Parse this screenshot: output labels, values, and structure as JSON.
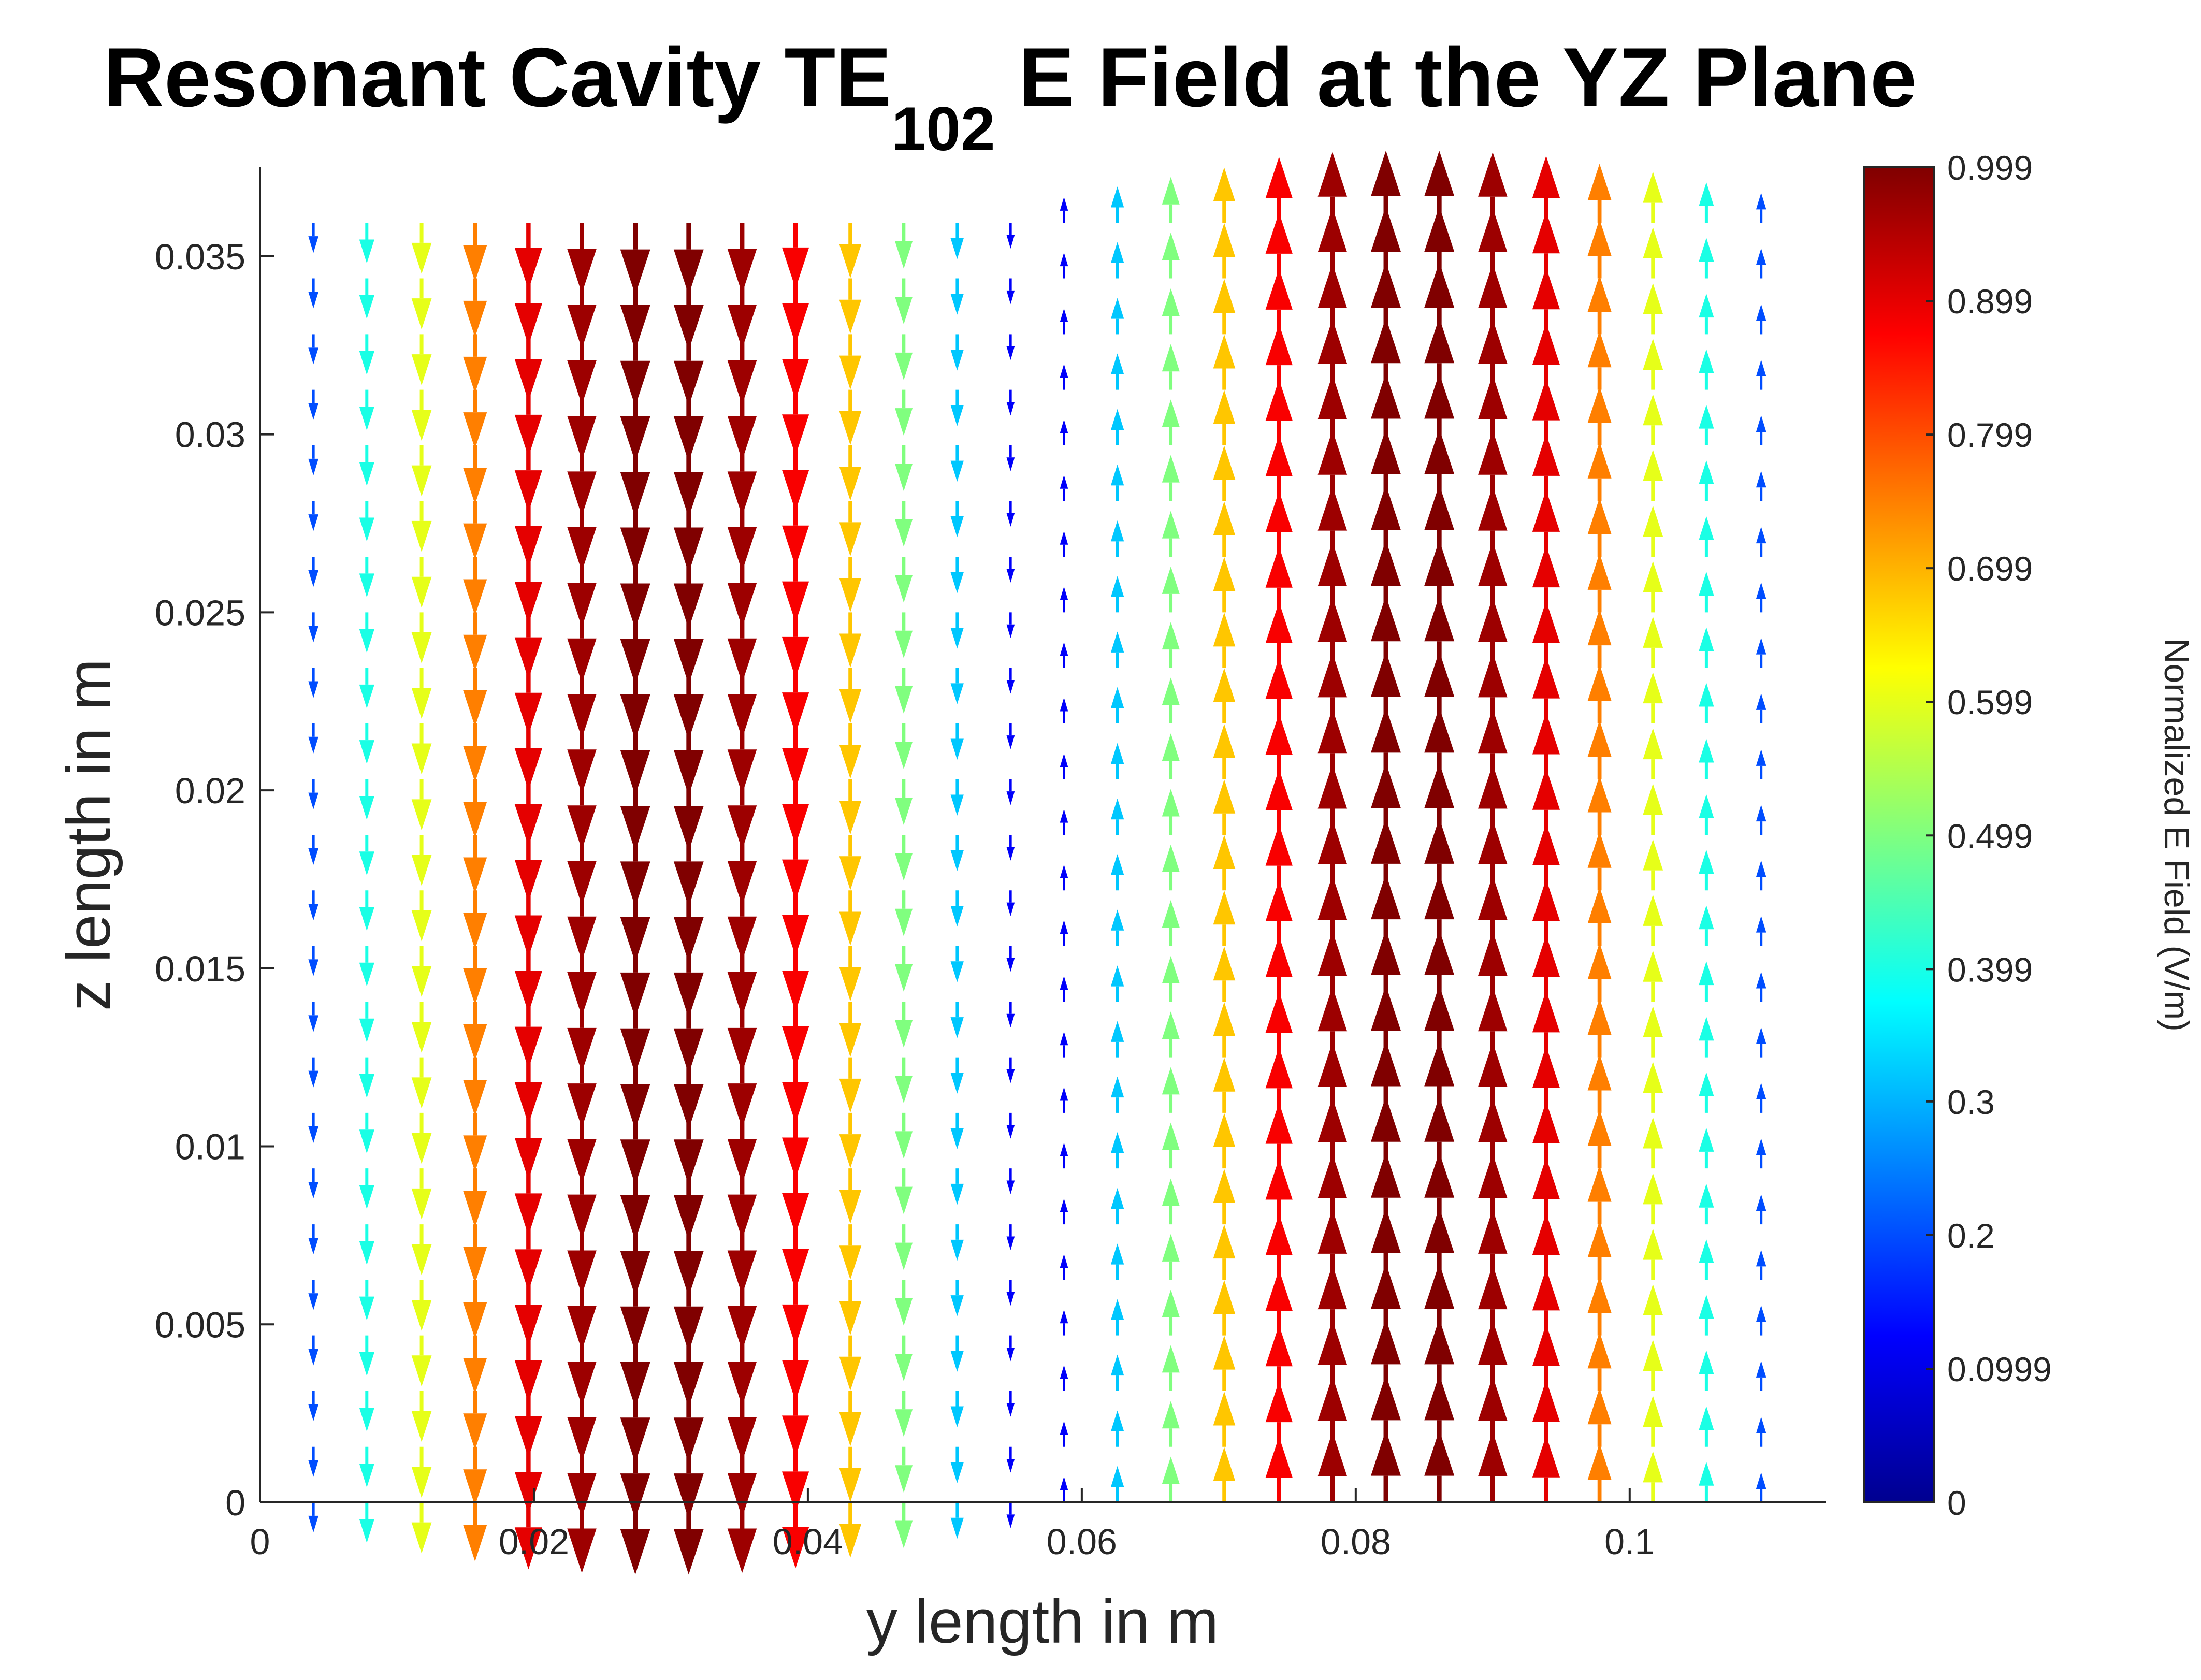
{
  "chart_data": {
    "type": "quiver",
    "title_main": "Resonant Cavity TE",
    "title_subscript": "102",
    "title_rest": " E Field at the YZ Plane",
    "xlabel": "y length in m",
    "ylabel": "z length in m",
    "xlim": [
      0,
      0.1143
    ],
    "ylim": [
      0,
      0.0375
    ],
    "xticks": [
      0,
      0.02,
      0.04,
      0.06,
      0.08,
      0.1
    ],
    "xtick_labels": [
      "0",
      "0.02",
      "0.04",
      "0.06",
      "0.08",
      "0.1"
    ],
    "yticks": [
      0,
      0.005,
      0.01,
      0.015,
      0.02,
      0.025,
      0.03,
      0.035
    ],
    "ytick_labels": [
      "0",
      "0.005",
      "0.01",
      "0.015",
      "0.02",
      "0.025",
      "0.03",
      "0.035"
    ],
    "colorbar": {
      "label": "Normalized E Field (V/m)",
      "colormap": "jet",
      "clim": [
        0,
        0.999
      ],
      "ticks": [
        0,
        0.0999,
        0.2,
        0.3,
        0.399,
        0.499,
        0.599,
        0.699,
        0.799,
        0.899,
        0.999
      ],
      "tick_labels": [
        "0",
        "0.0999",
        "0.2",
        "0.3",
        "0.399",
        "0.499",
        "0.599",
        "0.699",
        "0.799",
        "0.899",
        "0.999"
      ]
    },
    "grid": false,
    "arrow_columns": {
      "y": [
        0.0039,
        0.0078,
        0.0118,
        0.0157,
        0.0196,
        0.0235,
        0.0274,
        0.0313,
        0.0352,
        0.0391,
        0.0431,
        0.047,
        0.0509,
        0.0548,
        0.0587,
        0.0626,
        0.0665,
        0.0704,
        0.0744,
        0.0783,
        0.0822,
        0.0861,
        0.09,
        0.0939,
        0.0978,
        0.1017,
        0.1056,
        0.1096
      ],
      "magnitude": [
        0.2,
        0.4,
        0.6,
        0.75,
        0.9,
        0.97,
        0.999,
        0.999,
        0.97,
        0.88,
        0.68,
        0.5,
        0.32,
        0.12,
        0.12,
        0.32,
        0.5,
        0.68,
        0.88,
        0.97,
        0.999,
        0.999,
        0.97,
        0.9,
        0.75,
        0.6,
        0.4,
        0.2
      ],
      "direction": [
        "down",
        "down",
        "down",
        "down",
        "down",
        "down",
        "down",
        "down",
        "down",
        "down",
        "down",
        "down",
        "down",
        "down",
        "up",
        "up",
        "up",
        "up",
        "up",
        "up",
        "up",
        "up",
        "up",
        "up",
        "up",
        "up",
        "up",
        "up"
      ]
    },
    "arrow_rows_z": [
      0.0,
      0.00156,
      0.00313,
      0.00469,
      0.00625,
      0.00781,
      0.00938,
      0.01094,
      0.0125,
      0.01406,
      0.01563,
      0.01719,
      0.01875,
      0.02031,
      0.02188,
      0.02344,
      0.025,
      0.02656,
      0.02813,
      0.02969,
      0.03125,
      0.03281,
      0.03438,
      0.03594
    ]
  }
}
